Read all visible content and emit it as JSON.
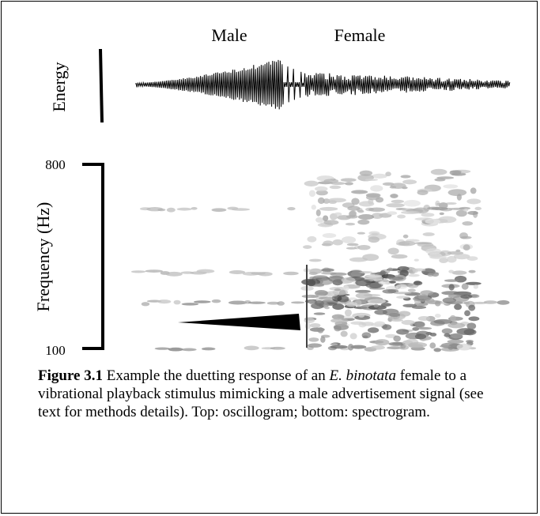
{
  "figure": {
    "oscillogram": {
      "labels": [
        "Male",
        "Female"
      ],
      "y_label": "Energy"
    },
    "spectrogram": {
      "y_label": "Frequency (Hz)",
      "y_ticks": [
        800,
        100
      ]
    },
    "caption": {
      "number": "Figure 3.1",
      "text_1": " Example the duetting response of an ",
      "species": "E. binotata",
      "text_2": " female to a vibrational playback stimulus mimicking a male advertisement signal (see text for methods details). Top: oscillogram; bottom: spectrogram."
    }
  }
}
